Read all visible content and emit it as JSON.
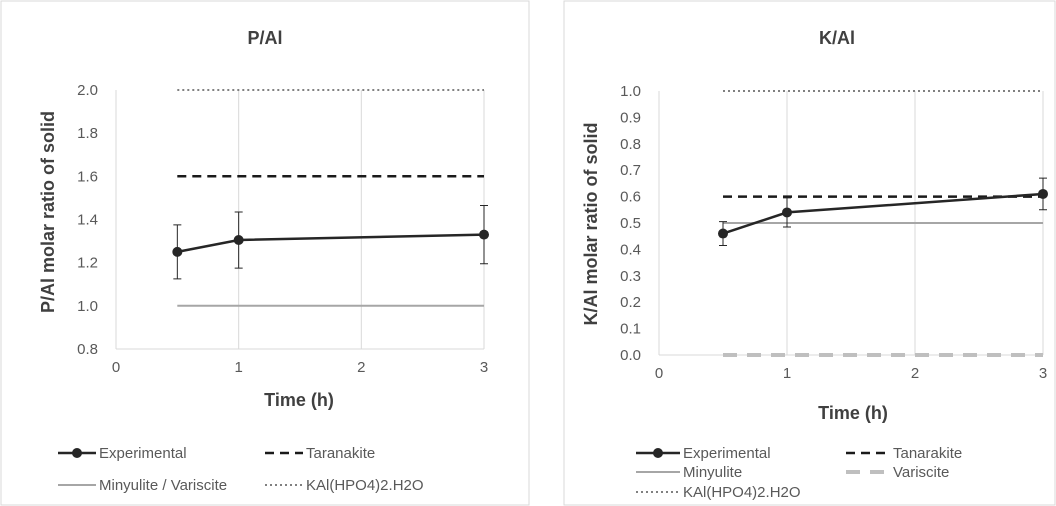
{
  "chart_data": [
    {
      "type": "line",
      "title": "P/Al",
      "xlabel": "Time (h)",
      "ylabel": "P/Al molar ratio of solid",
      "xlim": [
        0,
        3
      ],
      "ylim": [
        0.8,
        2.0
      ],
      "xticks": [
        0,
        1,
        2,
        3
      ],
      "yticks": [
        0.8,
        1.0,
        1.2,
        1.4,
        1.6,
        1.8,
        2.0
      ],
      "ytick_format": 1,
      "grid": "vertical",
      "legend": "bottom",
      "series": [
        {
          "name": "Experimental",
          "style": "line-marker",
          "color": "#262626",
          "x": [
            0.5,
            1,
            3
          ],
          "y": [
            1.25,
            1.305,
            1.33
          ],
          "err": [
            0.125,
            0.13,
            0.135
          ]
        },
        {
          "name": "Taranakite",
          "style": "dashed",
          "color": "#1a1a1a",
          "x": [
            0.5,
            3
          ],
          "y": [
            1.6,
            1.6
          ]
        },
        {
          "name": "Minyulite / Variscite",
          "style": "solid-light",
          "color": "#a6a6a6",
          "x": [
            0.5,
            3
          ],
          "y": [
            1.0,
            1.0
          ]
        },
        {
          "name": "KAl(HPO4)2.H2O",
          "style": "dotted",
          "color": "#808080",
          "x": [
            0.5,
            3
          ],
          "y": [
            2.0,
            2.0
          ]
        }
      ]
    },
    {
      "type": "line",
      "title": "K/Al",
      "xlabel": "Time (h)",
      "ylabel": "K/Al molar ratio of solid",
      "xlim": [
        0,
        3
      ],
      "ylim": [
        0.0,
        1.0
      ],
      "xticks": [
        0,
        1,
        2,
        3
      ],
      "yticks": [
        0.0,
        0.1,
        0.2,
        0.3,
        0.4,
        0.5,
        0.6,
        0.7,
        0.8,
        0.9,
        1.0
      ],
      "ytick_format": 1,
      "grid": "vertical",
      "legend": "bottom",
      "series": [
        {
          "name": "Experimental",
          "style": "line-marker",
          "color": "#262626",
          "x": [
            0.5,
            1,
            3
          ],
          "y": [
            0.46,
            0.54,
            0.61
          ],
          "err": [
            0.045,
            0.055,
            0.06
          ]
        },
        {
          "name": "Tanarakite",
          "style": "dashed",
          "color": "#1a1a1a",
          "x": [
            0.5,
            3
          ],
          "y": [
            0.6,
            0.6
          ]
        },
        {
          "name": "Minyulite",
          "style": "solid-light",
          "color": "#a6a6a6",
          "x": [
            0.5,
            3
          ],
          "y": [
            0.5,
            0.5
          ]
        },
        {
          "name": "Variscite",
          "style": "dashed-thick-light",
          "color": "#bfbfbf",
          "x": [
            0.5,
            3
          ],
          "y": [
            0.0,
            0.0
          ]
        },
        {
          "name": "KAl(HPO4)2.H2O",
          "style": "dotted",
          "color": "#808080",
          "x": [
            0.5,
            3
          ],
          "y": [
            1.0,
            1.0
          ]
        }
      ]
    }
  ]
}
